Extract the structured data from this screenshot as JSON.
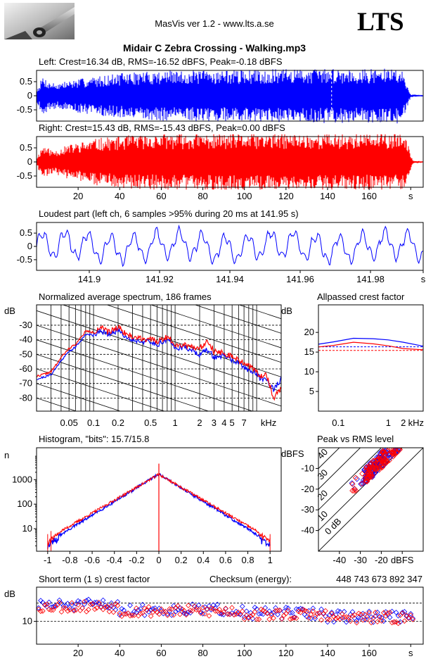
{
  "header": {
    "app_title": "MasVis ver 1.2 - www.lts.a.se",
    "brand": "LTS",
    "file_title": "Midair C Zebra Crossing - Walking.mp3"
  },
  "colors": {
    "left": "#0000ff",
    "right": "#ff0000",
    "axis": "#000000"
  },
  "chart_data": [
    {
      "id": "left",
      "type": "area",
      "title": "Left: Crest=16.34 dB, RMS=-16.52 dBFS, Peak=-0.18 dBFS",
      "yticks": [
        "0.5",
        "0",
        "-0.5"
      ],
      "ytick_values": [
        0.5,
        0,
        -0.5
      ],
      "ylim": [
        -0.9,
        0.9
      ],
      "xlim": [
        0,
        186
      ],
      "marker_x": 141.95,
      "envelope": [
        [
          0,
          0.2
        ],
        [
          3,
          0.7
        ],
        [
          6,
          0.5
        ],
        [
          10,
          0.45
        ],
        [
          20,
          0.6
        ],
        [
          30,
          0.7
        ],
        [
          40,
          0.8
        ],
        [
          50,
          0.85
        ],
        [
          60,
          0.9
        ],
        [
          70,
          0.88
        ],
        [
          80,
          0.9
        ],
        [
          100,
          0.92
        ],
        [
          120,
          0.95
        ],
        [
          140,
          0.97
        ],
        [
          160,
          0.95
        ],
        [
          170,
          0.97
        ],
        [
          175,
          1.0
        ],
        [
          178,
          0.5
        ],
        [
          180,
          0.05
        ],
        [
          186,
          0.03
        ]
      ]
    },
    {
      "id": "right",
      "type": "area",
      "title": "Right: Crest=15.43 dB, RMS=-15.43 dBFS, Peak=0.00 dBFS",
      "yticks": [
        "0.5",
        "0",
        "-0.5"
      ],
      "ytick_values": [
        0.5,
        0,
        -0.5
      ],
      "ylim": [
        -0.9,
        0.9
      ],
      "xlim": [
        0,
        186
      ],
      "xticks": [
        "20",
        "40",
        "60",
        "80",
        "100",
        "120",
        "140",
        "160",
        "s"
      ],
      "xtick_values": [
        20,
        40,
        60,
        80,
        100,
        120,
        140,
        160,
        180
      ],
      "envelope": [
        [
          0,
          0.15
        ],
        [
          3,
          0.6
        ],
        [
          8,
          0.4
        ],
        [
          15,
          0.6
        ],
        [
          30,
          0.85
        ],
        [
          45,
          0.95
        ],
        [
          60,
          1.0
        ],
        [
          80,
          1.0
        ],
        [
          100,
          1.0
        ],
        [
          120,
          1.0
        ],
        [
          150,
          1.0
        ],
        [
          170,
          1.0
        ],
        [
          176,
          1.0
        ],
        [
          179,
          0.6
        ],
        [
          181,
          0.05
        ],
        [
          186,
          0.03
        ]
      ]
    },
    {
      "id": "loudest",
      "type": "line",
      "title": "Loudest part (left  ch, 6 samples >95% during 20 ms at 141.95 s)",
      "yticks": [
        "0.5",
        "0",
        "-0.5"
      ],
      "ytick_values": [
        0.5,
        0,
        -0.5
      ],
      "ylim": [
        -0.9,
        0.9
      ],
      "xlim": [
        141.885,
        141.995
      ],
      "xticks": [
        "141.9",
        "141.92",
        "141.94",
        "141.96",
        "141.98",
        "s"
      ],
      "xtick_values": [
        141.9,
        141.92,
        141.94,
        141.96,
        141.98,
        141.995
      ]
    },
    {
      "id": "spectrum",
      "type": "line",
      "title": "Normalized average spectrum, 186 frames",
      "ylabel": "dB",
      "yticks": [
        "-30",
        "-40",
        "-50",
        "-60",
        "-70",
        "-80"
      ],
      "ytick_values": [
        -30,
        -40,
        -50,
        -60,
        -70,
        -80
      ],
      "ylim": [
        -89,
        -16
      ],
      "xlim_khz": [
        0.02,
        20
      ],
      "xticks": [
        "0.05",
        "0.1",
        "0.2",
        "0.5",
        "1",
        "2",
        "3",
        "4",
        "5",
        "7",
        "kHz"
      ],
      "xtick_values": [
        0.05,
        0.1,
        0.2,
        0.5,
        1,
        2,
        3,
        4,
        5,
        7,
        14
      ],
      "series": [
        {
          "color": "#0000ff",
          "points": [
            [
              0.02,
              -67
            ],
            [
              0.03,
              -64
            ],
            [
              0.04,
              -54
            ],
            [
              0.05,
              -48
            ],
            [
              0.06,
              -45
            ],
            [
              0.08,
              -36
            ],
            [
              0.1,
              -37
            ],
            [
              0.12,
              -33
            ],
            [
              0.15,
              -37
            ],
            [
              0.2,
              -33
            ],
            [
              0.25,
              -38
            ],
            [
              0.3,
              -40
            ],
            [
              0.4,
              -41
            ],
            [
              0.5,
              -42
            ],
            [
              0.6,
              -43
            ],
            [
              0.8,
              -40
            ],
            [
              1,
              -45
            ],
            [
              1.5,
              -46
            ],
            [
              2,
              -50
            ],
            [
              2.5,
              -47
            ],
            [
              3,
              -52
            ],
            [
              4,
              -51
            ],
            [
              5,
              -54
            ],
            [
              7,
              -59
            ],
            [
              9,
              -62
            ],
            [
              11,
              -66
            ],
            [
              13,
              -67
            ],
            [
              16,
              -74
            ],
            [
              20,
              -67
            ]
          ]
        },
        {
          "color": "#ff0000",
          "points": [
            [
              0.02,
              -65
            ],
            [
              0.03,
              -62
            ],
            [
              0.04,
              -52
            ],
            [
              0.05,
              -46
            ],
            [
              0.06,
              -43
            ],
            [
              0.08,
              -34
            ],
            [
              0.1,
              -35
            ],
            [
              0.12,
              -31
            ],
            [
              0.15,
              -35
            ],
            [
              0.2,
              -31
            ],
            [
              0.25,
              -36
            ],
            [
              0.3,
              -38
            ],
            [
              0.4,
              -39
            ],
            [
              0.5,
              -40
            ],
            [
              0.6,
              -41
            ],
            [
              0.8,
              -38
            ],
            [
              1,
              -43
            ],
            [
              1.5,
              -44
            ],
            [
              2,
              -46
            ],
            [
              2.5,
              -40
            ],
            [
              3,
              -48
            ],
            [
              4,
              -49
            ],
            [
              5,
              -52
            ],
            [
              7,
              -56
            ],
            [
              9,
              -60
            ],
            [
              11,
              -65
            ],
            [
              13,
              -63
            ],
            [
              16,
              -80
            ],
            [
              20,
              -74
            ]
          ]
        }
      ]
    },
    {
      "id": "allpass",
      "type": "line",
      "title": "Allpassed crest factor",
      "ylabel": "dB",
      "yticks": [
        "20",
        "15",
        "10",
        "5"
      ],
      "ytick_values": [
        20,
        15,
        10,
        5
      ],
      "ylim": [
        0,
        27
      ],
      "xlim_khz": [
        0.04,
        5
      ],
      "xticks": [
        "0.1",
        "1",
        "2",
        "kHz"
      ],
      "xtick_values": [
        0.1,
        1,
        2,
        3.6
      ],
      "series": [
        {
          "color": "#0000ff",
          "points": [
            [
              0.04,
              17
            ],
            [
              0.08,
              17.6
            ],
            [
              0.2,
              18.5
            ],
            [
              0.5,
              18.4
            ],
            [
              1,
              18.1
            ],
            [
              2,
              17.5
            ],
            [
              5,
              16.5
            ]
          ]
        },
        {
          "color": "#ff0000",
          "points": [
            [
              0.04,
              16.3
            ],
            [
              0.08,
              16.7
            ],
            [
              0.2,
              17.5
            ],
            [
              0.5,
              17.1
            ],
            [
              1,
              16.6
            ],
            [
              2,
              15.9
            ],
            [
              5,
              15.6
            ]
          ]
        }
      ],
      "reference": [
        {
          "color": "#0000ff",
          "value": 16.34
        },
        {
          "color": "#ff0000",
          "value": 15.43
        }
      ]
    },
    {
      "id": "histogram",
      "type": "line",
      "title": "Histogram, \"bits\": 15.7/15.8",
      "ylabel": "n",
      "yticks": [
        "1000",
        "100",
        "10"
      ],
      "ytick_values": [
        1000,
        100,
        10
      ],
      "ylim_log": [
        1.2,
        20000
      ],
      "xlim": [
        -1.1,
        1.1
      ],
      "xticks": [
        "-1",
        "-0.8",
        "-0.6",
        "-0.4",
        "-0.2",
        "0",
        "0.2",
        "0.4",
        "0.6",
        "0.8",
        "1"
      ],
      "xtick_values": [
        -1,
        -0.8,
        -0.6,
        -0.4,
        -0.2,
        0,
        0.2,
        0.4,
        0.6,
        0.8,
        1
      ]
    },
    {
      "id": "peak_vs_rms",
      "type": "scatter",
      "title": "Peak vs RMS level",
      "ylabel": "dBFS",
      "yticks": [
        "-10",
        "-20",
        "-30",
        "-40"
      ],
      "ytick_values": [
        -10,
        -20,
        -30,
        -40
      ],
      "ylim": [
        -50,
        0
      ],
      "xlim": [
        -50,
        0
      ],
      "xticks": [
        "-40",
        "-30",
        "-20",
        "dBFS"
      ],
      "xtick_values": [
        -40,
        -30,
        -20,
        -10
      ],
      "diagonal_labels": [
        "40",
        "30",
        "20",
        "10",
        "0 dB"
      ],
      "diagonal_values": [
        40,
        30,
        20,
        10,
        0
      ]
    },
    {
      "id": "short_term_crest",
      "type": "scatter",
      "title": "Short term (1 s) crest factor",
      "ylabel": "dB",
      "yticks": [
        "10"
      ],
      "ytick_values": [
        10
      ],
      "ylim": [
        0,
        25
      ],
      "xlim": [
        0,
        186
      ],
      "ref_lines": [
        10,
        18
      ],
      "xticks": [
        "20",
        "40",
        "60",
        "80",
        "100",
        "120",
        "140",
        "160",
        "s"
      ],
      "xtick_values": [
        20,
        40,
        60,
        80,
        100,
        120,
        140,
        160,
        180
      ],
      "checksum_label": "Checksum (energy):",
      "checksum_value": "448 743 673 892 347"
    }
  ]
}
